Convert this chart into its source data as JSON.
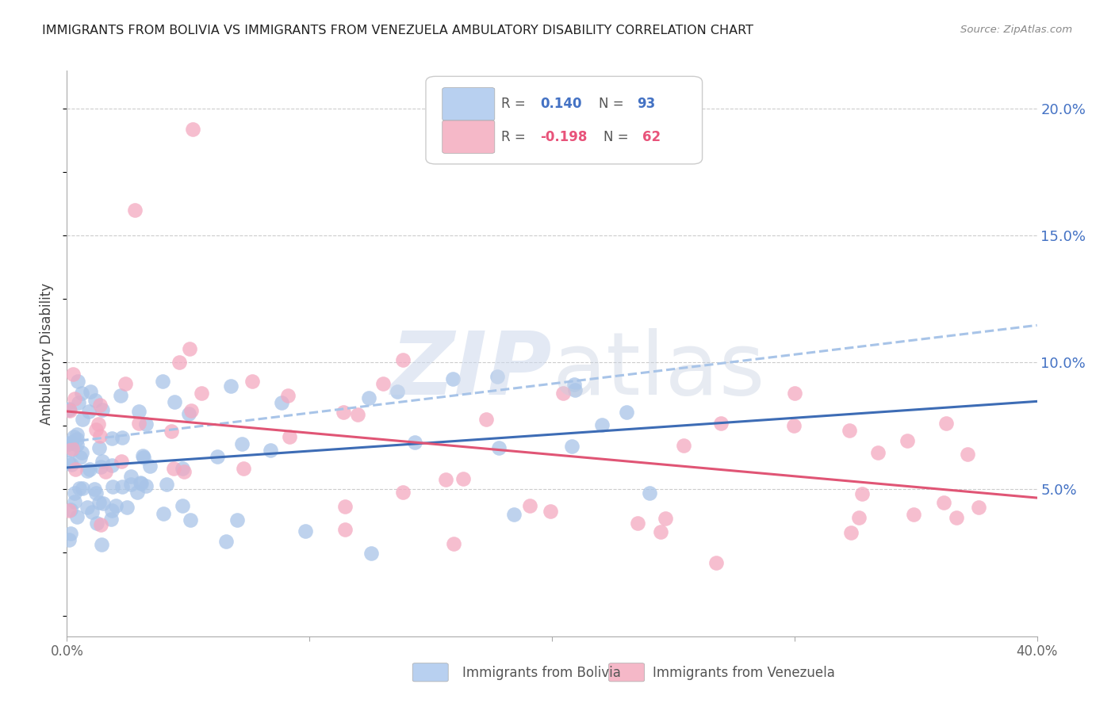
{
  "title": "IMMIGRANTS FROM BOLIVIA VS IMMIGRANTS FROM VENEZUELA AMBULATORY DISABILITY CORRELATION CHART",
  "source": "Source: ZipAtlas.com",
  "ylabel": "Ambulatory Disability",
  "xlim": [
    0.0,
    0.4
  ],
  "ylim": [
    -0.008,
    0.215
  ],
  "yticks": [
    0.05,
    0.1,
    0.15,
    0.2
  ],
  "ytick_labels": [
    "5.0%",
    "10.0%",
    "15.0%",
    "20.0%"
  ],
  "bolivia_R": 0.14,
  "bolivia_N": 93,
  "venezuela_R": -0.198,
  "venezuela_N": 62,
  "bolivia_color": "#a8c4e8",
  "venezuela_color": "#f4a8c0",
  "bolivia_line_color": "#3d6cb5",
  "venezuela_line_color": "#e05575",
  "dashed_line_color": "#a8c4e8",
  "grid_color": "#cccccc",
  "background_color": "#ffffff",
  "legend_box_color_bolivia": "#b8d0f0",
  "legend_box_color_venezuela": "#f5b8c8",
  "right_tick_color": "#4472c4",
  "title_color": "#222222",
  "source_color": "#888888",
  "ylabel_color": "#444444"
}
